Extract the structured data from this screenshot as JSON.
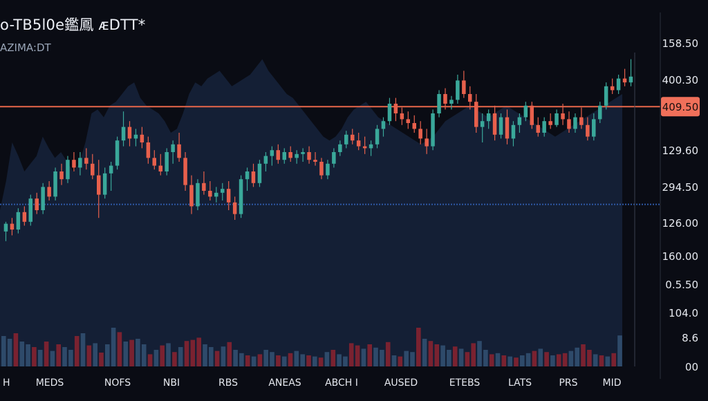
{
  "header": {
    "title": "o-TB5l0e鑑鳳 ᴁDTT*",
    "subtitle": "AZIMA:DT"
  },
  "colors": {
    "background": "#0a0c14",
    "up": "#3aa89a",
    "down": "#e8604c",
    "area_fill": "#16233b",
    "reference_line": "#e8674a",
    "dotted_line": "#2f5aa8",
    "volume_up": "#2e4a6a",
    "volume_down": "#7a2230",
    "axis_text": "#e6e9ef"
  },
  "chart_data": {
    "type": "candlestick",
    "title": "o-TB5l0e鑑鳳 ᴁDTT*",
    "subtitle": "AZIMA:DT",
    "y_tick_labels": [
      "158.50",
      "400.30",
      "129.60",
      "294.50",
      "126.00",
      "160.00",
      "0.5.50",
      "104.0",
      "8.6",
      "00"
    ],
    "price_tag": "409.50",
    "x_tick_labels": [
      "H",
      "MEDS",
      "NOFS",
      "NBI",
      "RBS",
      "ANEAS",
      "ABCH I",
      "AUSED",
      "ETEBS",
      "LATS",
      "PRS",
      "MID"
    ],
    "price_scale": {
      "top_value": 100,
      "bottom_value": 0
    },
    "reference_level": 73.5,
    "dotted_level": 23,
    "grid": false,
    "candles": [
      {
        "o": 9,
        "h": 14,
        "l": 4,
        "c": 13
      },
      {
        "o": 13,
        "h": 16,
        "l": 7,
        "c": 10
      },
      {
        "o": 10,
        "h": 21,
        "l": 8,
        "c": 19
      },
      {
        "o": 19,
        "h": 22,
        "l": 12,
        "c": 14
      },
      {
        "o": 14,
        "h": 28,
        "l": 12,
        "c": 26
      },
      {
        "o": 26,
        "h": 29,
        "l": 18,
        "c": 20
      },
      {
        "o": 20,
        "h": 34,
        "l": 18,
        "c": 32
      },
      {
        "o": 32,
        "h": 35,
        "l": 25,
        "c": 27
      },
      {
        "o": 27,
        "h": 42,
        "l": 25,
        "c": 40
      },
      {
        "o": 40,
        "h": 44,
        "l": 33,
        "c": 36
      },
      {
        "o": 36,
        "h": 48,
        "l": 34,
        "c": 46
      },
      {
        "o": 46,
        "h": 50,
        "l": 40,
        "c": 42
      },
      {
        "o": 42,
        "h": 50,
        "l": 38,
        "c": 47
      },
      {
        "o": 47,
        "h": 52,
        "l": 41,
        "c": 44
      },
      {
        "o": 44,
        "h": 49,
        "l": 36,
        "c": 38
      },
      {
        "o": 38,
        "h": 46,
        "l": 16,
        "c": 28
      },
      {
        "o": 28,
        "h": 42,
        "l": 26,
        "c": 39
      },
      {
        "o": 39,
        "h": 45,
        "l": 30,
        "c": 43
      },
      {
        "o": 43,
        "h": 58,
        "l": 41,
        "c": 56
      },
      {
        "o": 56,
        "h": 71,
        "l": 53,
        "c": 63
      },
      {
        "o": 63,
        "h": 66,
        "l": 53,
        "c": 57
      },
      {
        "o": 57,
        "h": 62,
        "l": 53,
        "c": 59
      },
      {
        "o": 59,
        "h": 63,
        "l": 52,
        "c": 55
      },
      {
        "o": 55,
        "h": 58,
        "l": 44,
        "c": 47
      },
      {
        "o": 47,
        "h": 51,
        "l": 41,
        "c": 43
      },
      {
        "o": 43,
        "h": 49,
        "l": 38,
        "c": 40
      },
      {
        "o": 40,
        "h": 52,
        "l": 38,
        "c": 50
      },
      {
        "o": 50,
        "h": 56,
        "l": 44,
        "c": 54
      },
      {
        "o": 54,
        "h": 60,
        "l": 45,
        "c": 47
      },
      {
        "o": 47,
        "h": 50,
        "l": 30,
        "c": 33
      },
      {
        "o": 33,
        "h": 38,
        "l": 18,
        "c": 22
      },
      {
        "o": 22,
        "h": 36,
        "l": 20,
        "c": 34
      },
      {
        "o": 34,
        "h": 40,
        "l": 28,
        "c": 30
      },
      {
        "o": 30,
        "h": 35,
        "l": 25,
        "c": 27
      },
      {
        "o": 27,
        "h": 32,
        "l": 24,
        "c": 29
      },
      {
        "o": 29,
        "h": 34,
        "l": 25,
        "c": 31
      },
      {
        "o": 31,
        "h": 35,
        "l": 20,
        "c": 24
      },
      {
        "o": 24,
        "h": 27,
        "l": 15,
        "c": 18
      },
      {
        "o": 18,
        "h": 38,
        "l": 16,
        "c": 36
      },
      {
        "o": 36,
        "h": 42,
        "l": 30,
        "c": 40
      },
      {
        "o": 40,
        "h": 44,
        "l": 32,
        "c": 34
      },
      {
        "o": 34,
        "h": 46,
        "l": 32,
        "c": 44
      },
      {
        "o": 44,
        "h": 50,
        "l": 40,
        "c": 48
      },
      {
        "o": 48,
        "h": 53,
        "l": 43,
        "c": 51
      },
      {
        "o": 51,
        "h": 54,
        "l": 44,
        "c": 46
      },
      {
        "o": 46,
        "h": 52,
        "l": 44,
        "c": 50
      },
      {
        "o": 50,
        "h": 53,
        "l": 45,
        "c": 47
      },
      {
        "o": 47,
        "h": 51,
        "l": 44,
        "c": 49
      },
      {
        "o": 49,
        "h": 52,
        "l": 45,
        "c": 50
      },
      {
        "o": 50,
        "h": 53,
        "l": 44,
        "c": 46
      },
      {
        "o": 46,
        "h": 50,
        "l": 43,
        "c": 45
      },
      {
        "o": 45,
        "h": 47,
        "l": 36,
        "c": 38
      },
      {
        "o": 38,
        "h": 46,
        "l": 36,
        "c": 44
      },
      {
        "o": 44,
        "h": 52,
        "l": 42,
        "c": 50
      },
      {
        "o": 50,
        "h": 56,
        "l": 48,
        "c": 54
      },
      {
        "o": 54,
        "h": 61,
        "l": 52,
        "c": 59
      },
      {
        "o": 59,
        "h": 62,
        "l": 54,
        "c": 56
      },
      {
        "o": 56,
        "h": 60,
        "l": 51,
        "c": 53
      },
      {
        "o": 53,
        "h": 58,
        "l": 49,
        "c": 52
      },
      {
        "o": 52,
        "h": 56,
        "l": 48,
        "c": 54
      },
      {
        "o": 54,
        "h": 64,
        "l": 52,
        "c": 62
      },
      {
        "o": 62,
        "h": 68,
        "l": 58,
        "c": 66
      },
      {
        "o": 66,
        "h": 78,
        "l": 64,
        "c": 75
      },
      {
        "o": 75,
        "h": 78,
        "l": 66,
        "c": 70
      },
      {
        "o": 70,
        "h": 73,
        "l": 64,
        "c": 67
      },
      {
        "o": 67,
        "h": 71,
        "l": 62,
        "c": 65
      },
      {
        "o": 65,
        "h": 69,
        "l": 60,
        "c": 62
      },
      {
        "o": 62,
        "h": 66,
        "l": 54,
        "c": 57
      },
      {
        "o": 57,
        "h": 62,
        "l": 49,
        "c": 53
      },
      {
        "o": 53,
        "h": 72,
        "l": 51,
        "c": 70
      },
      {
        "o": 70,
        "h": 82,
        "l": 68,
        "c": 80
      },
      {
        "o": 80,
        "h": 83,
        "l": 72,
        "c": 75
      },
      {
        "o": 75,
        "h": 79,
        "l": 72,
        "c": 77
      },
      {
        "o": 77,
        "h": 90,
        "l": 75,
        "c": 87
      },
      {
        "o": 87,
        "h": 92,
        "l": 78,
        "c": 80
      },
      {
        "o": 80,
        "h": 84,
        "l": 72,
        "c": 76
      },
      {
        "o": 76,
        "h": 80,
        "l": 60,
        "c": 63
      },
      {
        "o": 63,
        "h": 70,
        "l": 55,
        "c": 66
      },
      {
        "o": 66,
        "h": 72,
        "l": 62,
        "c": 70
      },
      {
        "o": 70,
        "h": 74,
        "l": 56,
        "c": 59
      },
      {
        "o": 59,
        "h": 70,
        "l": 57,
        "c": 68
      },
      {
        "o": 68,
        "h": 72,
        "l": 54,
        "c": 57
      },
      {
        "o": 57,
        "h": 66,
        "l": 53,
        "c": 64
      },
      {
        "o": 64,
        "h": 70,
        "l": 60,
        "c": 68
      },
      {
        "o": 68,
        "h": 76,
        "l": 66,
        "c": 74
      },
      {
        "o": 74,
        "h": 76,
        "l": 62,
        "c": 64
      },
      {
        "o": 64,
        "h": 68,
        "l": 58,
        "c": 60
      },
      {
        "o": 60,
        "h": 68,
        "l": 58,
        "c": 66
      },
      {
        "o": 66,
        "h": 70,
        "l": 62,
        "c": 64
      },
      {
        "o": 64,
        "h": 72,
        "l": 63,
        "c": 70
      },
      {
        "o": 70,
        "h": 75,
        "l": 64,
        "c": 67
      },
      {
        "o": 67,
        "h": 71,
        "l": 60,
        "c": 62
      },
      {
        "o": 62,
        "h": 70,
        "l": 60,
        "c": 68
      },
      {
        "o": 68,
        "h": 73,
        "l": 62,
        "c": 64
      },
      {
        "o": 64,
        "h": 68,
        "l": 56,
        "c": 58
      },
      {
        "o": 58,
        "h": 70,
        "l": 56,
        "c": 67
      },
      {
        "o": 67,
        "h": 76,
        "l": 65,
        "c": 74
      },
      {
        "o": 74,
        "h": 86,
        "l": 72,
        "c": 84
      },
      {
        "o": 84,
        "h": 88,
        "l": 80,
        "c": 82
      },
      {
        "o": 82,
        "h": 90,
        "l": 80,
        "c": 88
      },
      {
        "o": 88,
        "h": 93,
        "l": 84,
        "c": 86
      },
      {
        "o": 86,
        "h": 98,
        "l": 84,
        "c": 89
      }
    ],
    "area_profile": [
      20,
      35,
      55,
      48,
      40,
      44,
      48,
      58,
      52,
      47,
      50,
      45,
      40,
      44,
      55,
      70,
      72,
      68,
      74,
      76,
      80,
      84,
      86,
      78,
      74,
      72,
      70,
      66,
      60,
      62,
      70,
      80,
      86,
      84,
      88,
      90,
      92,
      88,
      84,
      86,
      88,
      90,
      94,
      98,
      92,
      88,
      84,
      80,
      78,
      74,
      70,
      66,
      62,
      58,
      56,
      58,
      62,
      68,
      72,
      74,
      76,
      72,
      68,
      66,
      64,
      62,
      60,
      58,
      56,
      54,
      56,
      58,
      62,
      66,
      68,
      70,
      72,
      74,
      72,
      70,
      68,
      70,
      72,
      74,
      72,
      70,
      68,
      66,
      64,
      62,
      60,
      58,
      60,
      62,
      64,
      66,
      68,
      70,
      72,
      74,
      76,
      78,
      80
    ],
    "volume": [
      0.55,
      0.5,
      0.6,
      0.45,
      0.4,
      0.35,
      0.3,
      0.45,
      0.28,
      0.4,
      0.35,
      0.3,
      0.55,
      0.6,
      0.38,
      0.42,
      0.25,
      0.4,
      0.7,
      0.62,
      0.45,
      0.48,
      0.5,
      0.4,
      0.22,
      0.3,
      0.38,
      0.42,
      0.26,
      0.35,
      0.46,
      0.48,
      0.52,
      0.4,
      0.35,
      0.28,
      0.36,
      0.44,
      0.3,
      0.24,
      0.2,
      0.18,
      0.22,
      0.3,
      0.26,
      0.2,
      0.18,
      0.24,
      0.28,
      0.22,
      0.2,
      0.18,
      0.16,
      0.26,
      0.3,
      0.22,
      0.18,
      0.42,
      0.38,
      0.32,
      0.4,
      0.34,
      0.3,
      0.44,
      0.2,
      0.18,
      0.28,
      0.26,
      0.7,
      0.5,
      0.46,
      0.4,
      0.38,
      0.3,
      0.36,
      0.32,
      0.26,
      0.42,
      0.46,
      0.3,
      0.22,
      0.24,
      0.2,
      0.18,
      0.16,
      0.2,
      0.24,
      0.28,
      0.32,
      0.26,
      0.2,
      0.22,
      0.24,
      0.28,
      0.34,
      0.4,
      0.3,
      0.22,
      0.2,
      0.18,
      0.24,
      0.56
    ],
    "volume_colors": [
      "up",
      "up",
      "down",
      "up",
      "up",
      "down",
      "up",
      "down",
      "up",
      "down",
      "up",
      "up",
      "down",
      "up",
      "down",
      "up",
      "down",
      "up",
      "up",
      "down",
      "up",
      "down",
      "up",
      "up",
      "down",
      "up",
      "down",
      "up",
      "down",
      "up",
      "down",
      "down",
      "down",
      "up",
      "up",
      "down",
      "up",
      "down",
      "up",
      "up",
      "down",
      "up",
      "down",
      "up",
      "up",
      "down",
      "up",
      "down",
      "up",
      "up",
      "down",
      "up",
      "down",
      "up",
      "down",
      "up",
      "up",
      "down",
      "down",
      "up",
      "down",
      "up",
      "up",
      "down",
      "up",
      "down",
      "up",
      "up",
      "down",
      "up",
      "down",
      "down",
      "up",
      "up",
      "down",
      "up",
      "down",
      "down",
      "up",
      "up",
      "down",
      "up",
      "down",
      "up",
      "down",
      "up",
      "up",
      "down",
      "up",
      "down",
      "up",
      "down",
      "down",
      "up",
      "up",
      "down",
      "down",
      "up",
      "down",
      "up",
      "down",
      "up"
    ]
  }
}
